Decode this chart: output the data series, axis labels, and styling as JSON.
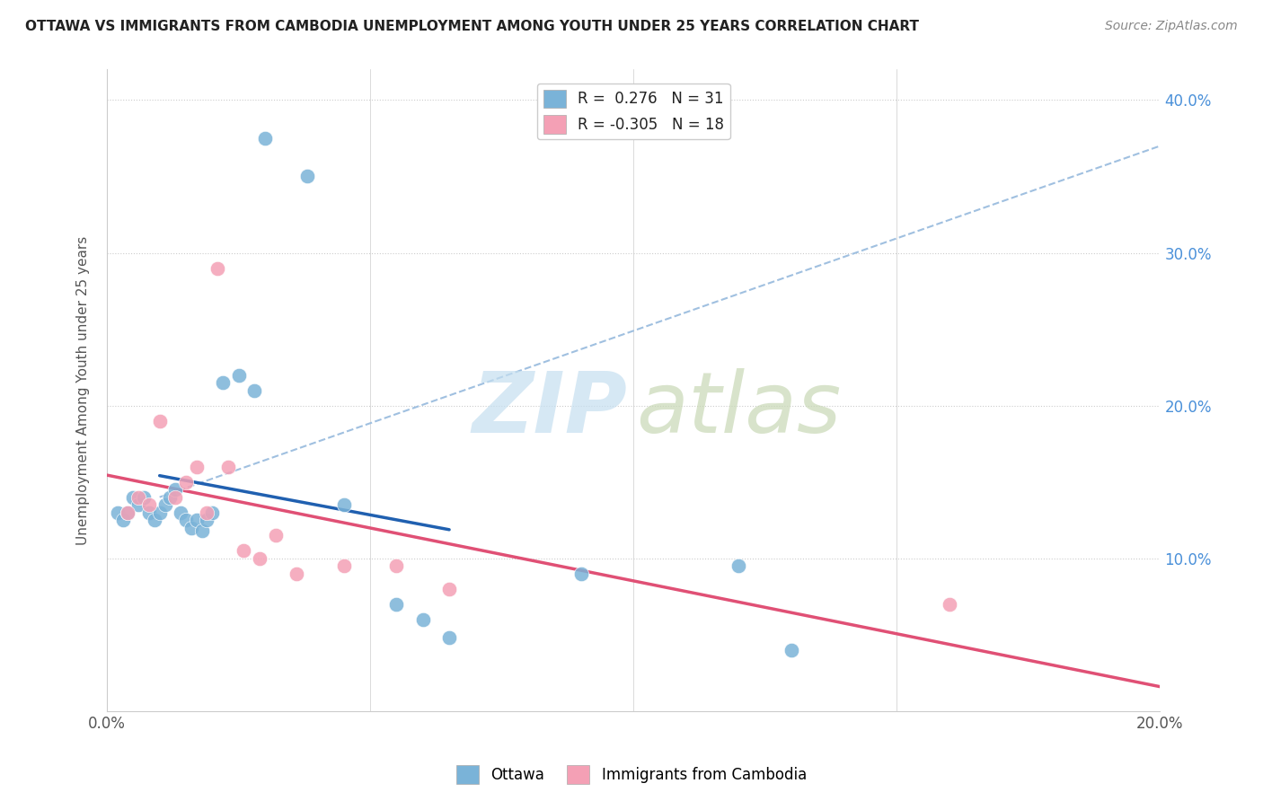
{
  "title": "OTTAWA VS IMMIGRANTS FROM CAMBODIA UNEMPLOYMENT AMONG YOUTH UNDER 25 YEARS CORRELATION CHART",
  "source": "Source: ZipAtlas.com",
  "ylabel": "Unemployment Among Youth under 25 years",
  "xlim": [
    0.0,
    0.2
  ],
  "ylim": [
    0.0,
    0.42
  ],
  "x_tick_positions": [
    0.0,
    0.05,
    0.1,
    0.15,
    0.2
  ],
  "x_tick_labels": [
    "0.0%",
    "",
    "",
    "",
    "20.0%"
  ],
  "y_tick_positions": [
    0.0,
    0.1,
    0.2,
    0.3,
    0.4
  ],
  "y_tick_labels_right": [
    "10.0%",
    "20.0%",
    "30.0%",
    "40.0%"
  ],
  "y_tick_positions_right": [
    0.1,
    0.2,
    0.3,
    0.4
  ],
  "ottawa_R": 0.276,
  "ottawa_N": 31,
  "cambodia_R": -0.305,
  "cambodia_N": 18,
  "ottawa_color": "#7ab3d8",
  "cambodia_color": "#f4a0b5",
  "ottawa_line_color": "#2060b0",
  "cambodia_line_color": "#e05075",
  "dashed_line_color": "#a0c0e0",
  "background_color": "#ffffff",
  "ottawa_x": [
    0.002,
    0.003,
    0.004,
    0.005,
    0.006,
    0.007,
    0.008,
    0.009,
    0.01,
    0.011,
    0.012,
    0.013,
    0.014,
    0.015,
    0.016,
    0.017,
    0.018,
    0.019,
    0.02,
    0.022,
    0.025,
    0.028,
    0.03,
    0.038,
    0.045,
    0.055,
    0.06,
    0.065,
    0.09,
    0.12,
    0.13
  ],
  "ottawa_y": [
    0.13,
    0.125,
    0.13,
    0.14,
    0.135,
    0.14,
    0.13,
    0.125,
    0.13,
    0.135,
    0.14,
    0.145,
    0.13,
    0.125,
    0.12,
    0.125,
    0.118,
    0.125,
    0.13,
    0.215,
    0.22,
    0.21,
    0.375,
    0.35,
    0.135,
    0.07,
    0.06,
    0.048,
    0.09,
    0.095,
    0.04
  ],
  "cambodia_x": [
    0.004,
    0.006,
    0.008,
    0.01,
    0.013,
    0.015,
    0.017,
    0.019,
    0.021,
    0.023,
    0.026,
    0.029,
    0.032,
    0.036,
    0.045,
    0.055,
    0.065,
    0.16
  ],
  "cambodia_y": [
    0.13,
    0.14,
    0.135,
    0.19,
    0.14,
    0.15,
    0.16,
    0.13,
    0.29,
    0.16,
    0.105,
    0.1,
    0.115,
    0.09,
    0.095,
    0.095,
    0.08,
    0.07
  ]
}
